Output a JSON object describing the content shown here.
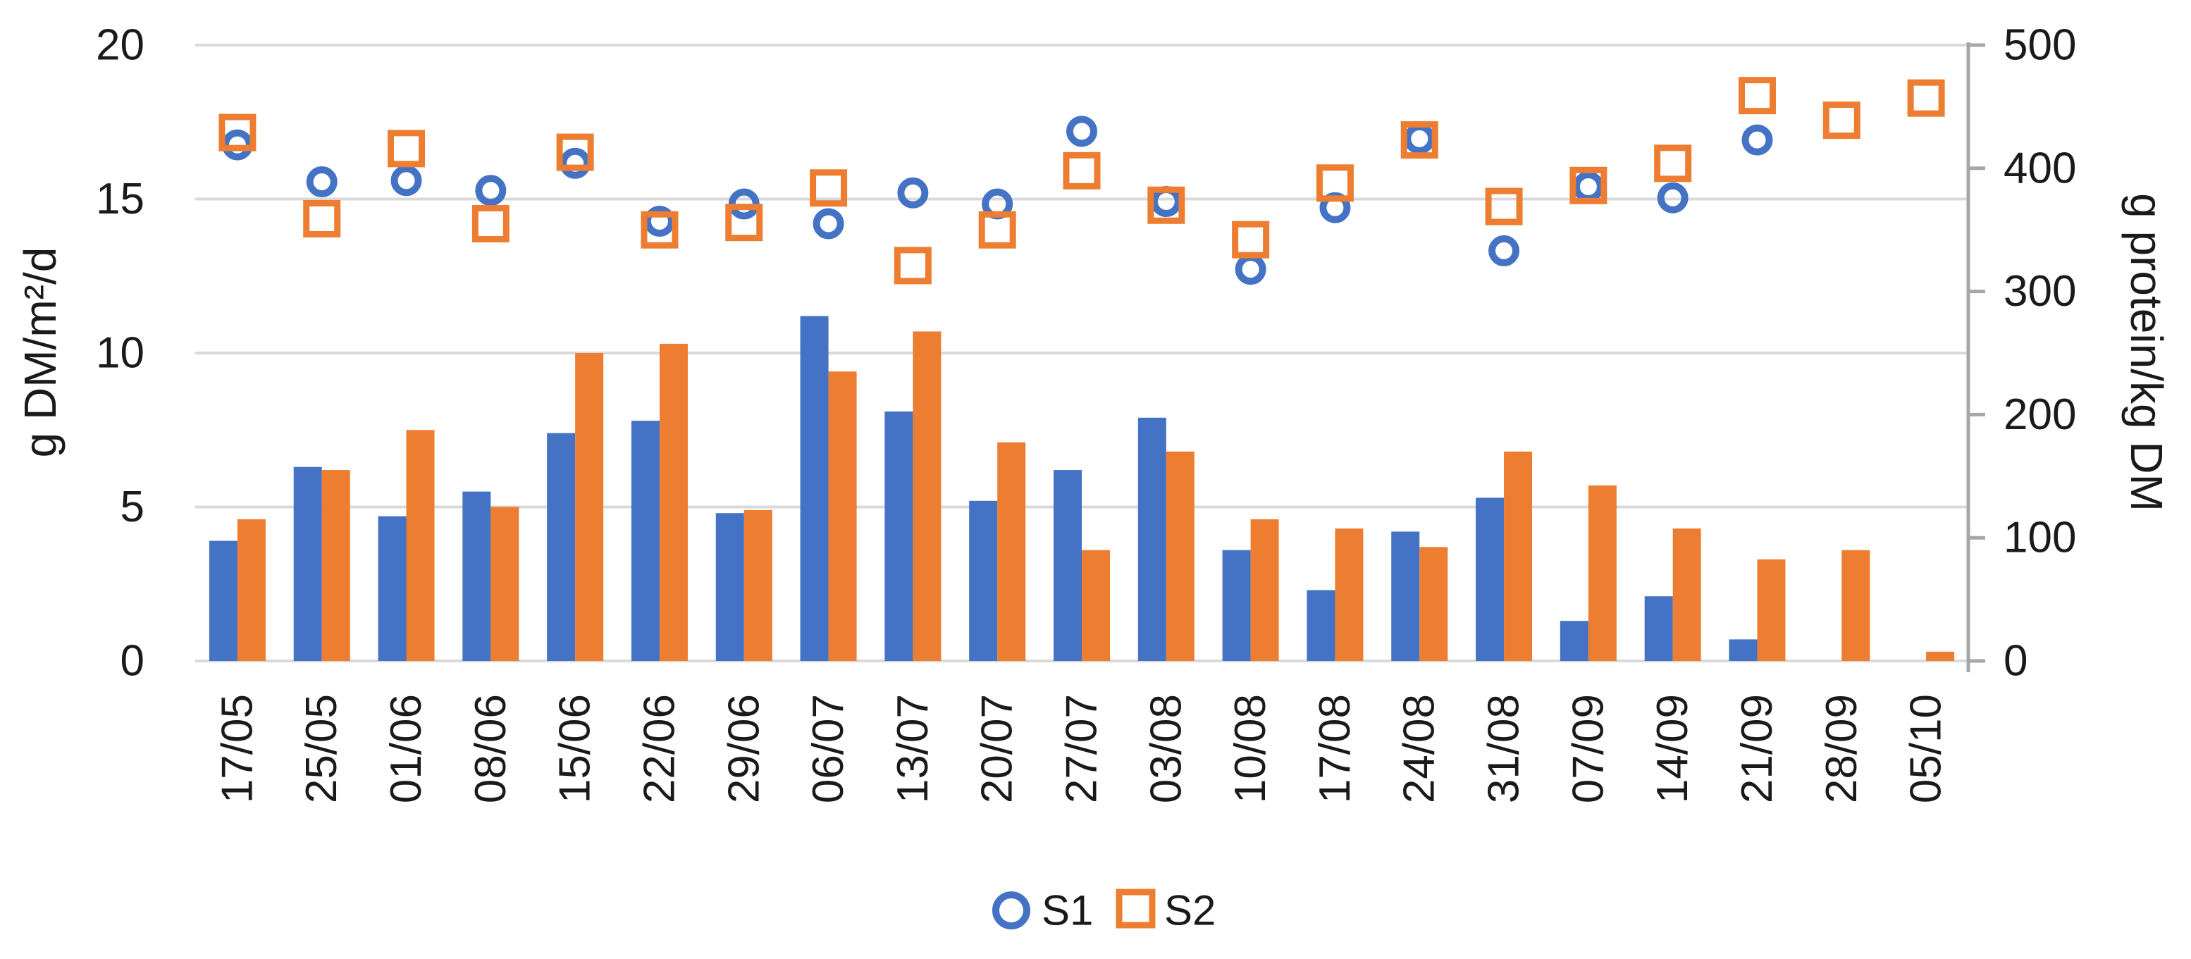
{
  "chart_data": {
    "type": "bar",
    "subtype": "combo-bar-scatter",
    "title": "",
    "categories": [
      "17/05",
      "25/05",
      "01/06",
      "08/06",
      "15/06",
      "22/06",
      "29/06",
      "06/07",
      "13/07",
      "20/07",
      "27/07",
      "03/08",
      "10/08",
      "17/08",
      "24/08",
      "31/08",
      "07/09",
      "14/09",
      "21/09",
      "28/09",
      "05/10"
    ],
    "series": [
      {
        "name": "S1",
        "render": "bar",
        "axis": "left",
        "color": "#4472C4",
        "values": [
          3.9,
          6.3,
          4.7,
          5.5,
          7.4,
          7.8,
          4.8,
          11.2,
          8.1,
          5.2,
          6.2,
          7.9,
          3.6,
          2.3,
          4.2,
          5.3,
          1.3,
          2.1,
          0.7,
          null,
          null
        ]
      },
      {
        "name": "S2",
        "render": "bar",
        "axis": "left",
        "color": "#ED7D31",
        "values": [
          4.6,
          6.2,
          7.5,
          5.0,
          10.0,
          10.3,
          4.9,
          9.4,
          10.7,
          7.1,
          3.6,
          6.8,
          4.6,
          4.3,
          3.7,
          6.8,
          5.7,
          4.3,
          3.3,
          3.6,
          0.3
        ]
      },
      {
        "name": "S1",
        "render": "scatter",
        "marker": "circle",
        "axis": "right",
        "color": "#4472C4",
        "values": [
          419,
          389,
          390,
          382,
          404,
          357,
          371,
          355,
          380,
          371,
          430,
          373,
          318,
          368,
          424,
          333,
          385,
          376,
          423,
          null,
          null
        ]
      },
      {
        "name": "S2",
        "render": "scatter",
        "marker": "square",
        "axis": "right",
        "color": "#ED7D31",
        "values": [
          429,
          359,
          416,
          355,
          413,
          350,
          356,
          384,
          321,
          350,
          398,
          370,
          342,
          388,
          423,
          369,
          386,
          404,
          459,
          439,
          457
        ]
      }
    ],
    "left_axis": {
      "title": "g DM/m²/d",
      "min": 0,
      "max": 20,
      "tick_labels": [
        "0",
        "5",
        "10",
        "15",
        "20"
      ]
    },
    "right_axis": {
      "title": "g protein/kg DM",
      "min": 0,
      "max": 500,
      "tick_labels": [
        "0",
        "100",
        "200",
        "300",
        "400",
        "500"
      ]
    },
    "grid": true,
    "legend_position": "bottom",
    "legend": [
      {
        "label": "S1",
        "marker": "circle",
        "color": "#4472C4"
      },
      {
        "label": "S2",
        "marker": "square",
        "color": "#ED7D31"
      }
    ]
  },
  "colors": {
    "series1_blue": "#4472C4",
    "series2_orange": "#ED7D31",
    "gridline": "#D9D9D9",
    "axis_line": "#A6A6A6",
    "text": "#1a1a1a",
    "background": "#ffffff"
  }
}
